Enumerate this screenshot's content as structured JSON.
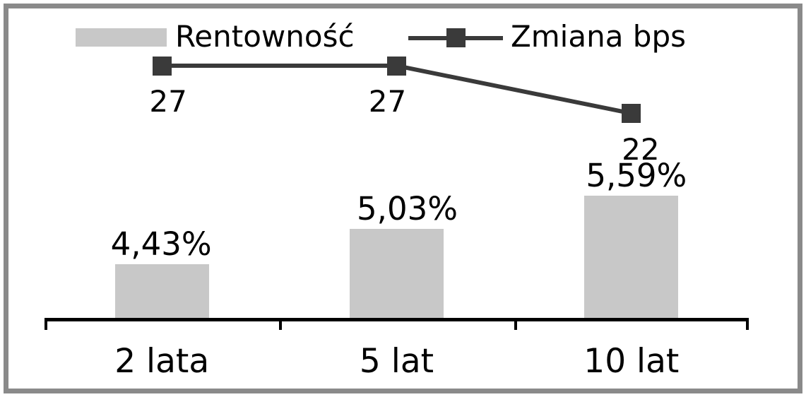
{
  "chart_data": {
    "type": "combo",
    "title": "",
    "categories": [
      "2 lata",
      "5 lat",
      "10 lat"
    ],
    "series": [
      {
        "name": "Rentowność",
        "type": "bar",
        "unit": "%",
        "values": [
          4.43,
          5.03,
          5.59
        ],
        "labels": [
          "4,43%",
          "5,03%",
          "5,59%"
        ],
        "color": "#c8c8c8"
      },
      {
        "name": "Zmiana bps",
        "type": "line",
        "unit": "bps",
        "values": [
          27,
          27,
          22
        ],
        "labels": [
          "27",
          "27",
          "22"
        ],
        "color": "#3a3a3a",
        "marker": "square"
      }
    ],
    "legend_position": "top",
    "grid": false,
    "value_axis_visible": false,
    "xlabel": "",
    "ylabel": ""
  },
  "colors": {
    "bar": "#c8c8c8",
    "line": "#3a3a3a",
    "text": "#000000",
    "axis": "#000000",
    "frame_border": "#8a8a8a",
    "background": "#ffffff"
  }
}
